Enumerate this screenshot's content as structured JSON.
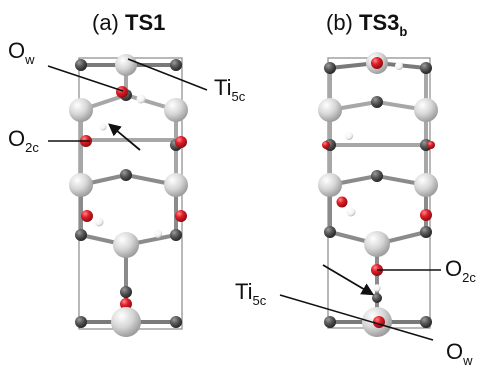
{
  "figure": {
    "panel_a": {
      "prefix": "(a) ",
      "name": "TS1",
      "labels": {
        "ow": {
          "main": "O",
          "sub": "w"
        },
        "ti": {
          "main": "Ti",
          "sub": "5c"
        },
        "o2c": {
          "main": "O",
          "sub": "2c"
        }
      }
    },
    "panel_b": {
      "prefix": "(b) ",
      "name": "TS3",
      "name_sub": "b",
      "labels": {
        "o2c": {
          "main": "O",
          "sub": "2c"
        },
        "ti": {
          "main": "Ti",
          "sub": "5c"
        },
        "ow": {
          "main": "O",
          "sub": "w"
        }
      }
    }
  },
  "colors": {
    "ti_atom": "#d9d9d9",
    "o_atom": "#e11d2a",
    "dark_atom": "#555555",
    "h_atom": "#ffffff",
    "bond": "#7a7a7a",
    "frame": "#8a8a8a",
    "label_line": "#111111"
  }
}
